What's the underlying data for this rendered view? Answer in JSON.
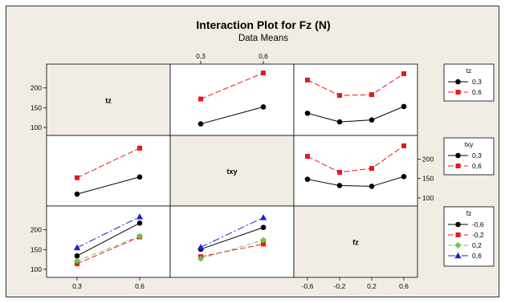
{
  "chart_data": {
    "type": "line",
    "title": "Interaction Plot for Fz (N)",
    "subtitle": "Data Means",
    "factors": [
      {
        "name": "tz",
        "levels": [
          "0,3",
          "0,6"
        ],
        "level_values": [
          0.3,
          0.6
        ]
      },
      {
        "name": "txy",
        "levels": [
          "0,3",
          "0,6"
        ],
        "level_values": [
          0.3,
          0.6
        ]
      },
      {
        "name": "fz",
        "levels": [
          "-0,6",
          "-0,2",
          "0,2",
          "0,6"
        ],
        "level_values": [
          -0.6,
          -0.2,
          0.2,
          0.6
        ]
      }
    ],
    "legends": [
      {
        "title": "tz",
        "entries": [
          "0,3",
          "0,6"
        ]
      },
      {
        "title": "txy",
        "entries": [
          "0,3",
          "0,6"
        ]
      },
      {
        "title": "fz",
        "entries": [
          "-0,6",
          "-0,2",
          "0,2",
          "0,6"
        ]
      }
    ],
    "series_colors": [
      "#000000",
      "#e41a1c",
      "#6cc24a",
      "#1f1fd0"
    ],
    "y_ticks": [
      100,
      150,
      200
    ],
    "ylim": [
      100,
      240
    ],
    "panels": [
      {
        "row": 0,
        "col": 1,
        "x_factor": "txy",
        "trace_factor": "tz",
        "series": [
          {
            "name": "0,3",
            "values": [
              109,
              152
            ]
          },
          {
            "name": "0,6",
            "values": [
              172,
              238
            ]
          }
        ]
      },
      {
        "row": 0,
        "col": 2,
        "x_factor": "fz",
        "trace_factor": "tz",
        "series": [
          {
            "name": "0,3",
            "values": [
              136,
              114,
              119,
              153
            ]
          },
          {
            "name": "0,6",
            "values": [
              220,
              181,
              183,
              236
            ]
          }
        ]
      },
      {
        "row": 1,
        "col": 0,
        "x_factor": "tz",
        "trace_factor": "txy",
        "series": [
          {
            "name": "0,3",
            "values": [
              110,
              154
            ]
          },
          {
            "name": "0,6",
            "values": [
              152,
              228
            ]
          }
        ]
      },
      {
        "row": 1,
        "col": 2,
        "x_factor": "fz",
        "trace_factor": "txy",
        "series": [
          {
            "name": "0,3",
            "values": [
              148,
              132,
              130,
              155
            ]
          },
          {
            "name": "0,6",
            "values": [
              207,
              166,
              176,
              234
            ]
          }
        ]
      },
      {
        "row": 2,
        "col": 0,
        "x_factor": "tz",
        "trace_factor": "fz",
        "series": [
          {
            "name": "-0,6",
            "values": [
              134,
              217
            ]
          },
          {
            "name": "-0,2",
            "values": [
              114,
              182
            ]
          },
          {
            "name": "0,2",
            "values": [
              121,
              184
            ]
          },
          {
            "name": "0,6",
            "values": [
              155,
              233
            ]
          }
        ]
      },
      {
        "row": 2,
        "col": 1,
        "x_factor": "txy",
        "trace_factor": "fz",
        "series": [
          {
            "name": "-0,6",
            "values": [
              151,
              206
            ]
          },
          {
            "name": "-0,2",
            "values": [
              132,
              164
            ]
          },
          {
            "name": "0,2",
            "values": [
              127,
              174
            ]
          },
          {
            "name": "0,6",
            "values": [
              156,
              231
            ]
          }
        ]
      }
    ],
    "grid": false
  }
}
